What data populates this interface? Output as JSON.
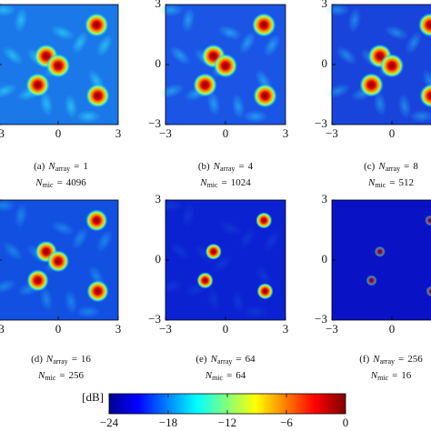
{
  "figure": {
    "axis": {
      "lim": [
        -3,
        3
      ],
      "ticks": [
        {
          "value": -3,
          "label": "−3"
        },
        0,
        3
      ]
    },
    "notation": {
      "symbol": "N",
      "array": "array",
      "mic": "mic",
      "relation": "="
    },
    "panels": [
      {
        "label": "(a)",
        "n_array": 1,
        "n_mic": 4096
      },
      {
        "label": "(b)",
        "n_array": 4,
        "n_mic": 1024
      },
      {
        "label": "(c)",
        "n_array": 8,
        "n_mic": 512
      },
      {
        "label": "(d)",
        "n_array": 16,
        "n_mic": 256
      },
      {
        "label": "(e)",
        "n_array": 64,
        "n_mic": 64
      },
      {
        "label": "(f)",
        "n_array": 256,
        "n_mic": 16
      }
    ],
    "colorbar": {
      "label": "[dB]",
      "lim": [
        -24,
        0
      ],
      "ticks": [
        {
          "value": -24,
          "label": "−24"
        },
        {
          "value": -18,
          "label": "−18"
        },
        {
          "value": -12,
          "label": "−12"
        },
        {
          "value": -6,
          "label": "−6"
        },
        0
      ]
    }
  }
}
